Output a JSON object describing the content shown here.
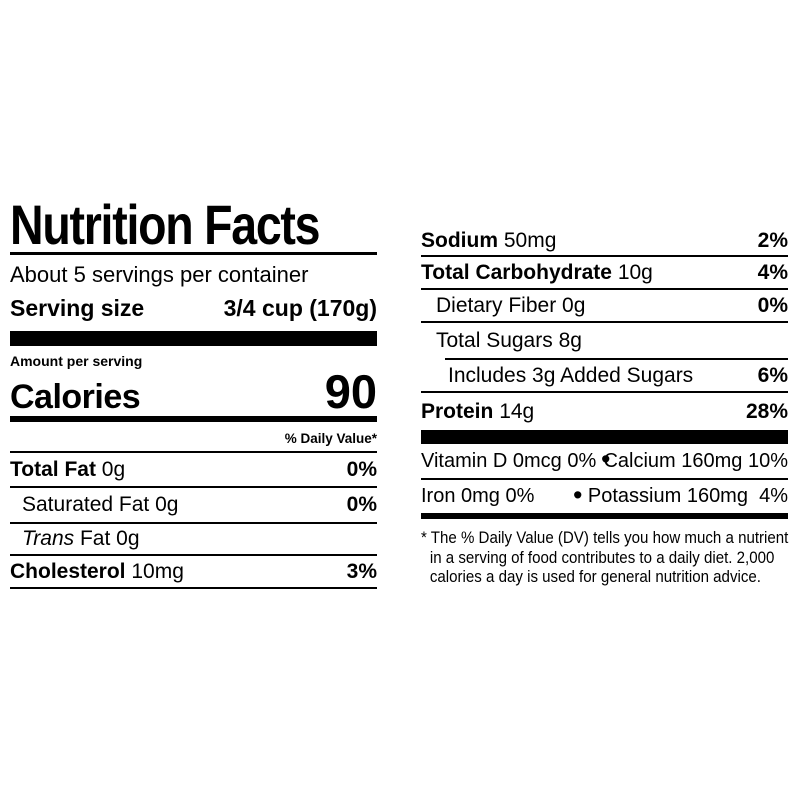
{
  "colors": {
    "ink": "#000000",
    "background": "#ffffff"
  },
  "nutrition_label": {
    "title": "Nutrition Facts",
    "servings_per_container": "About 5 servings per container",
    "serving_size": {
      "label": "Serving size",
      "value": "3/4 cup (170g)"
    },
    "amount_per_serving": "Amount per serving",
    "calories": {
      "label": "Calories",
      "value": "90"
    },
    "daily_value_header": "% Daily Value*",
    "nutrients_left": [
      {
        "name": "Total Fat",
        "amount": "0g",
        "dv": "0%"
      },
      {
        "name": "Saturated Fat",
        "amount": "0g",
        "dv": "0%"
      },
      {
        "name_italic": "Trans",
        "name": "Fat",
        "amount": "0g",
        "dv": ""
      },
      {
        "name": "Cholesterol",
        "amount": "10mg",
        "dv": "3%"
      }
    ],
    "nutrients_right": [
      {
        "name": "Sodium",
        "amount": "50mg",
        "dv": "2%"
      },
      {
        "name": "Total Carbohydrate",
        "amount": "10g",
        "dv": "4%"
      },
      {
        "name": "Dietary Fiber",
        "amount": "0g",
        "dv": "0%"
      },
      {
        "name": "Total Sugars",
        "amount": "8g",
        "dv": ""
      },
      {
        "name": "Includes 3g Added Sugars",
        "amount": "",
        "dv": "6%"
      },
      {
        "name": "Protein",
        "amount": "14g",
        "dv": "28%"
      }
    ],
    "micronutrients": [
      {
        "left": "Vitamin D 0mcg 0%",
        "bullet": "•",
        "right": "Calcium 160mg 10%"
      },
      {
        "left": "Iron 0mg 0%",
        "bullet": "•",
        "right": "Potassium 160mg  4%"
      }
    ],
    "footnote": {
      "line1": "* The % Daily Value (DV) tells you how much a nutrient",
      "line2": "in a serving of food contributes to a daily diet. 2,000",
      "line3": "calories a day is used for general nutrition advice."
    }
  }
}
